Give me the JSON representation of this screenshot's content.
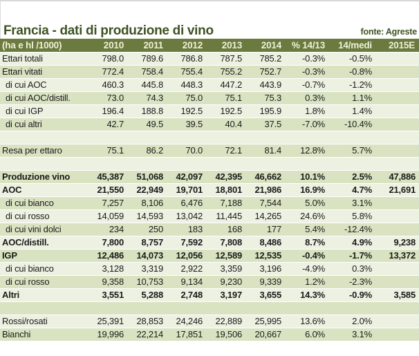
{
  "page": {
    "title": "Francia - dati di produzione di vino",
    "source": "fonte: Agreste"
  },
  "colors": {
    "header_bg": "#6b7a3e",
    "header_text": "#eef1da",
    "row_light": "#edf1e1",
    "row_green": "#d9e3c2",
    "title_text": "#3d5323",
    "body_text": "#1a1a1a"
  },
  "table": {
    "columns": [
      "(ha e hl /1000)",
      "2010",
      "2011",
      "2012",
      "2013",
      "2014",
      "% 14/13",
      "14/medi",
      "2015E"
    ],
    "rows": [
      {
        "label": "Ettari totali",
        "style": "normal",
        "cells": [
          "798.0",
          "789.6",
          "786.8",
          "787.5",
          "785.2",
          "-0.3%",
          "-0.5%",
          ""
        ]
      },
      {
        "label": "Ettari vitati",
        "style": "normal",
        "cells": [
          "772.4",
          "758.4",
          "755.4",
          "755.2",
          "752.7",
          "-0.3%",
          "-0.8%",
          ""
        ]
      },
      {
        "label": "di cui AOC",
        "style": "indent",
        "cells": [
          "460.3",
          "445.8",
          "448.3",
          "447.2",
          "443.9",
          "-0.7%",
          "-1.2%",
          ""
        ]
      },
      {
        "label": "di cui AOC/distill.",
        "style": "indent",
        "cells": [
          "73.0",
          "74.3",
          "75.0",
          "75.1",
          "75.3",
          "0.3%",
          "1.1%",
          ""
        ]
      },
      {
        "label": "di cui IGP",
        "style": "indent",
        "cells": [
          "196.4",
          "188.8",
          "192.5",
          "192.5",
          "195.9",
          "1.8%",
          "1.4%",
          ""
        ]
      },
      {
        "label": "di cui altri",
        "style": "indent",
        "cells": [
          "42.7",
          "49.5",
          "39.5",
          "40.4",
          "37.5",
          "-7.0%",
          "-10.4%",
          ""
        ]
      },
      {
        "label": "",
        "style": "blank",
        "cells": [
          "",
          "",
          "",
          "",
          "",
          "",
          "",
          ""
        ]
      },
      {
        "label": "Resa per ettaro",
        "style": "normal",
        "cells": [
          "75.1",
          "86.2",
          "70.0",
          "72.1",
          "81.4",
          "12.8%",
          "5.7%",
          ""
        ]
      },
      {
        "label": "",
        "style": "blank",
        "cells": [
          "",
          "",
          "",
          "",
          "",
          "",
          "",
          ""
        ]
      },
      {
        "label": "Produzione vino",
        "style": "bold",
        "cells": [
          "45,387",
          "51,068",
          "42,097",
          "42,395",
          "46,662",
          "10.1%",
          "2.5%",
          "47,886"
        ]
      },
      {
        "label": "AOC",
        "style": "bold",
        "cells": [
          "21,550",
          "22,949",
          "19,701",
          "18,801",
          "21,986",
          "16.9%",
          "4.7%",
          "21,691"
        ]
      },
      {
        "label": "di cui bianco",
        "style": "indent",
        "cells": [
          "7,257",
          "8,106",
          "6,476",
          "7,188",
          "7,544",
          "5.0%",
          "3.1%",
          ""
        ]
      },
      {
        "label": "di cui rosso",
        "style": "indent",
        "cells": [
          "14,059",
          "14,593",
          "13,042",
          "11,445",
          "14,265",
          "24.6%",
          "5.8%",
          ""
        ]
      },
      {
        "label": "di cui vini dolci",
        "style": "indent",
        "cells": [
          "234",
          "250",
          "183",
          "168",
          "177",
          "5.4%",
          "-12.4%",
          ""
        ]
      },
      {
        "label": "AOC/distill.",
        "style": "bold",
        "cells": [
          "7,800",
          "8,757",
          "7,592",
          "7,808",
          "8,486",
          "8.7%",
          "4.9%",
          "9,238"
        ]
      },
      {
        "label": "IGP",
        "style": "bold",
        "cells": [
          "12,486",
          "14,073",
          "12,056",
          "12,589",
          "12,535",
          "-0.4%",
          "-1.7%",
          "13,372"
        ]
      },
      {
        "label": "di cui bianco",
        "style": "indent",
        "cells": [
          "3,128",
          "3,319",
          "2,922",
          "3,359",
          "3,196",
          "-4.9%",
          "0.3%",
          ""
        ]
      },
      {
        "label": "di cui rosso",
        "style": "indent",
        "cells": [
          "9,358",
          "10,753",
          "9,134",
          "9,230",
          "9,339",
          "1.2%",
          "-2.3%",
          ""
        ]
      },
      {
        "label": "Altri",
        "style": "bold",
        "cells": [
          "3,551",
          "5,288",
          "2,748",
          "3,197",
          "3,655",
          "14.3%",
          "-0.9%",
          "3,585"
        ]
      },
      {
        "label": "",
        "style": "blank",
        "cells": [
          "",
          "",
          "",
          "",
          "",
          "",
          "",
          ""
        ]
      },
      {
        "label": "Rossi/rosati",
        "style": "normal",
        "cells": [
          "25,391",
          "28,853",
          "24,246",
          "22,889",
          "25,995",
          "13.6%",
          "2.0%",
          ""
        ]
      },
      {
        "label": "Bianchi",
        "style": "normal",
        "cells": [
          "19,996",
          "22,214",
          "17,851",
          "19,506",
          "20,667",
          "6.0%",
          "3.1%",
          ""
        ]
      }
    ]
  }
}
